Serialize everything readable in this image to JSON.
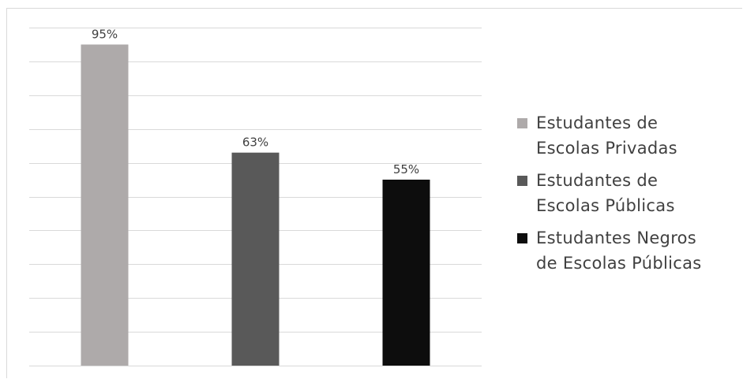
{
  "chart_data": {
    "type": "bar",
    "categories": [
      "Estudantes de Escolas Privadas",
      "Estudantes de Escolas Públicas",
      "Estudantes Negros de Escolas Públicas"
    ],
    "values": [
      95,
      63,
      55
    ],
    "value_labels": [
      "95%",
      "63%",
      "55%"
    ],
    "colors": [
      "#aeaaaa",
      "#595959",
      "#0d0d0d"
    ],
    "ylim": [
      0,
      100
    ],
    "grid": true,
    "legend_position": "right"
  },
  "legend": [
    {
      "line1": "Estudantes de",
      "line2": "Escolas Privadas",
      "color": "#aeaaaa"
    },
    {
      "line1": "Estudantes de",
      "line2": "Escolas Públicas",
      "color": "#595959"
    },
    {
      "line1": "Estudantes Negros",
      "line2": "de Escolas Públicas",
      "color": "#0d0d0d"
    }
  ]
}
